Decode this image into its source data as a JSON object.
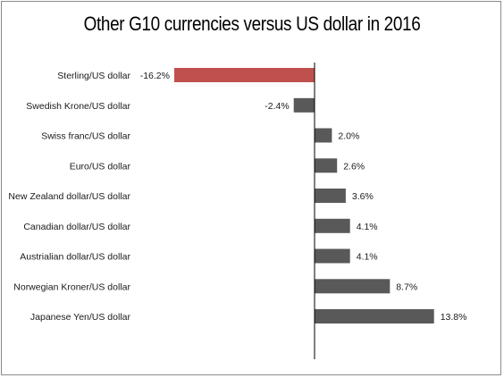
{
  "chart_data": {
    "type": "bar",
    "orientation": "horizontal",
    "title": "Other G10 currencies versus US dollar in 2016",
    "xlabel": "",
    "ylabel": "",
    "grid": false,
    "legend": "none",
    "categories": [
      "Sterling/US dollar",
      "Swedish Krone/US dollar",
      "Swiss franc/US dollar",
      "Euro/US dollar",
      "New Zealand dollar/US dollar",
      "Canadian dollar/US dollar",
      "Austrialian dollar/US dollar",
      "Norwegian Kroner/US dollar",
      "Japanese Yen/US dollar"
    ],
    "values": [
      -16.2,
      -2.4,
      2.0,
      2.6,
      3.6,
      4.1,
      4.1,
      8.7,
      13.8
    ],
    "value_labels": [
      "-16.2%",
      "-2.4%",
      "2.0%",
      "2.6%",
      "3.6%",
      "4.1%",
      "4.1%",
      "8.7%",
      "13.8%"
    ],
    "xlim": [
      -16.2,
      13.8
    ],
    "colors": {
      "highlight": "#c0504d",
      "default": "#595959",
      "axis": "#000000"
    },
    "highlight_index": 0
  }
}
